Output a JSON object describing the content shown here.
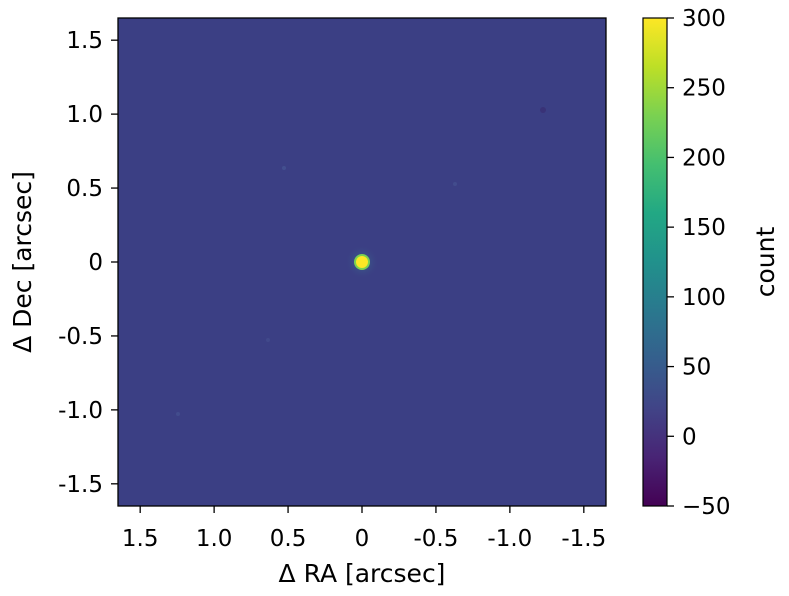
{
  "chart_data": {
    "type": "heatmap",
    "title": "",
    "xlabel": "Δ RA [arcsec]",
    "ylabel": "Δ Dec [arcsec]",
    "xlim": [
      1.65,
      -1.65
    ],
    "ylim": [
      -1.65,
      1.65
    ],
    "x_ticks": [
      {
        "value": 1.5,
        "label": "1.5"
      },
      {
        "value": 1.0,
        "label": "1.0"
      },
      {
        "value": 0.5,
        "label": "0.5"
      },
      {
        "value": 0.0,
        "label": "0"
      },
      {
        "value": -0.5,
        "label": "-0.5"
      },
      {
        "value": -1.0,
        "label": "-1.0"
      },
      {
        "value": -1.5,
        "label": "-1.5"
      }
    ],
    "y_ticks": [
      {
        "value": 1.5,
        "label": "1.5"
      },
      {
        "value": 1.0,
        "label": "1.0"
      },
      {
        "value": 0.5,
        "label": "0.5"
      },
      {
        "value": 0.0,
        "label": "0"
      },
      {
        "value": -0.5,
        "label": "-0.5"
      },
      {
        "value": -1.0,
        "label": "-1.0"
      },
      {
        "value": -1.5,
        "label": "-1.5"
      }
    ],
    "background_level": 0,
    "sources": [
      {
        "x": 0.0,
        "y": 0.0,
        "value": 300
      }
    ],
    "colorbar": {
      "label": "count",
      "colormap": "viridis",
      "range": [
        -50,
        300
      ],
      "ticks": [
        {
          "value": 300,
          "label": "300"
        },
        {
          "value": 250,
          "label": "250"
        },
        {
          "value": 200,
          "label": "200"
        },
        {
          "value": 150,
          "label": "150"
        },
        {
          "value": 100,
          "label": "100"
        },
        {
          "value": 50,
          "label": "50"
        },
        {
          "value": 0,
          "label": "0"
        },
        {
          "value": -50,
          "label": "−50"
        }
      ]
    },
    "grid": false
  }
}
